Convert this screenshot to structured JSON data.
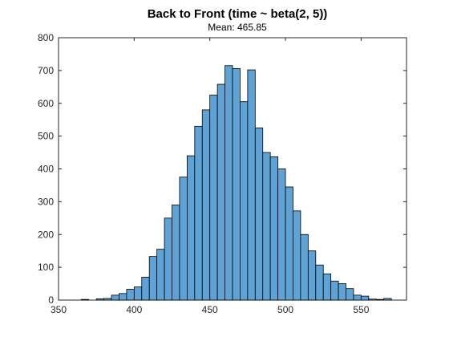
{
  "chart_data": {
    "type": "bar",
    "title": "Back to Front (time ~ beta(2, 5))",
    "subtitle": "Mean: 465.85",
    "xlabel": "",
    "ylabel": "",
    "xlim": [
      350,
      580
    ],
    "ylim": [
      0,
      800
    ],
    "x_ticks": [
      350,
      400,
      450,
      500,
      550
    ],
    "y_ticks": [
      0,
      100,
      200,
      300,
      400,
      500,
      600,
      700,
      800
    ],
    "grid": false,
    "bar_color": "#5fa3d6",
    "bin_width": 5,
    "bin_edges_start": 365,
    "values": [
      2,
      0,
      4,
      5,
      15,
      20,
      33,
      40,
      70,
      133,
      155,
      250,
      290,
      375,
      440,
      530,
      580,
      625,
      658,
      715,
      706,
      605,
      702,
      525,
      450,
      437,
      400,
      345,
      272,
      200,
      150,
      107,
      80,
      58,
      50,
      35,
      15,
      12,
      3,
      2,
      5
    ]
  }
}
